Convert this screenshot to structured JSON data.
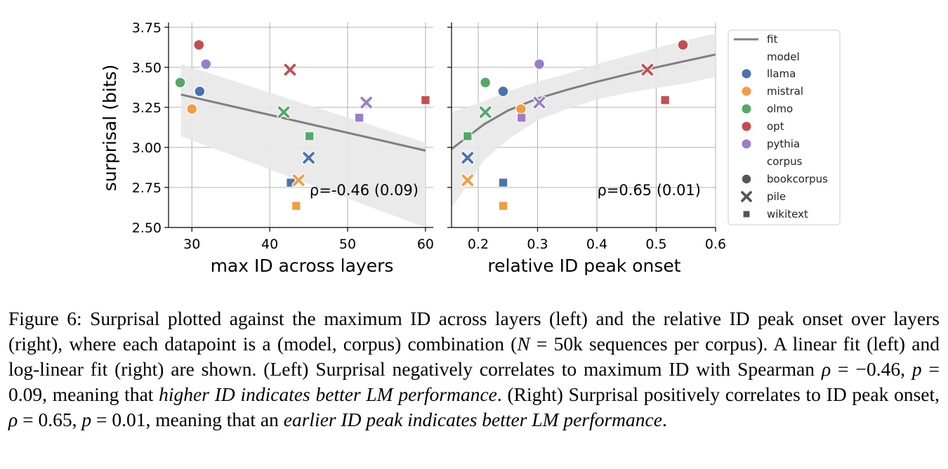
{
  "chart_data": [
    {
      "type": "scatter",
      "xlabel": "max ID across layers",
      "ylabel": "surprisal (bits)",
      "xlim": [
        27,
        61
      ],
      "ylim": [
        2.5,
        3.78
      ],
      "xticks": [
        30,
        40,
        50,
        60
      ],
      "xtick_labels": [
        "30",
        "40",
        "50",
        "60"
      ],
      "yticks": [
        2.5,
        2.75,
        3.0,
        3.25,
        3.5,
        3.75
      ],
      "ytick_labels": [
        "2.50",
        "2.75",
        "3.00",
        "3.25",
        "3.50",
        "3.75"
      ],
      "grid": true,
      "annotation": "ρ=-0.46 (0.09)",
      "fit": {
        "kind": "linear",
        "x": [
          28.6,
          60.0
        ],
        "y": [
          3.33,
          2.98
        ],
        "band_upper": [
          3.52,
          3.03
        ],
        "band_lower": [
          3.07,
          2.5
        ]
      },
      "points": [
        {
          "model": "llama",
          "corpus": "bookcorpus",
          "x": 31.0,
          "y": 3.35
        },
        {
          "model": "llama",
          "corpus": "pile",
          "x": 45.0,
          "y": 2.935
        },
        {
          "model": "llama",
          "corpus": "wikitext",
          "x": 42.7,
          "y": 2.78
        },
        {
          "model": "mistral",
          "corpus": "bookcorpus",
          "x": 30.0,
          "y": 3.24
        },
        {
          "model": "mistral",
          "corpus": "pile",
          "x": 43.7,
          "y": 2.795
        },
        {
          "model": "mistral",
          "corpus": "wikitext",
          "x": 43.4,
          "y": 2.635
        },
        {
          "model": "olmo",
          "corpus": "bookcorpus",
          "x": 28.5,
          "y": 3.405
        },
        {
          "model": "olmo",
          "corpus": "pile",
          "x": 41.8,
          "y": 3.22
        },
        {
          "model": "olmo",
          "corpus": "wikitext",
          "x": 45.1,
          "y": 3.07
        },
        {
          "model": "opt",
          "corpus": "bookcorpus",
          "x": 30.9,
          "y": 3.64
        },
        {
          "model": "opt",
          "corpus": "pile",
          "x": 42.6,
          "y": 3.485
        },
        {
          "model": "opt",
          "corpus": "wikitext",
          "x": 60.0,
          "y": 3.295
        },
        {
          "model": "pythia",
          "corpus": "bookcorpus",
          "x": 31.8,
          "y": 3.52
        },
        {
          "model": "pythia",
          "corpus": "pile",
          "x": 52.4,
          "y": 3.28
        },
        {
          "model": "pythia",
          "corpus": "wikitext",
          "x": 51.5,
          "y": 3.185
        }
      ]
    },
    {
      "type": "scatter",
      "xlabel": "relative ID peak onset",
      "ylabel": "",
      "xlim": [
        0.155,
        0.6
      ],
      "ylim": [
        2.5,
        3.78
      ],
      "xticks": [
        0.2,
        0.3,
        0.4,
        0.5,
        0.6
      ],
      "xtick_labels": [
        "0.2",
        "0.3",
        "0.4",
        "0.5",
        "0.6"
      ],
      "grid": true,
      "annotation": "ρ=0.65 (0.01)",
      "fit": {
        "kind": "log-linear",
        "x": [
          0.155,
          0.18,
          0.21,
          0.25,
          0.3,
          0.35,
          0.4,
          0.45,
          0.5,
          0.55,
          0.6
        ],
        "y": [
          2.99,
          3.06,
          3.145,
          3.23,
          3.305,
          3.36,
          3.41,
          3.455,
          3.5,
          3.54,
          3.58
        ],
        "band_upper": [
          3.22,
          3.25,
          3.29,
          3.35,
          3.41,
          3.46,
          3.52,
          3.57,
          3.62,
          3.67,
          3.71
        ],
        "band_lower": [
          2.62,
          2.76,
          2.92,
          3.05,
          3.17,
          3.24,
          3.3,
          3.34,
          3.37,
          3.4,
          3.44
        ]
      },
      "points": [
        {
          "model": "llama",
          "corpus": "bookcorpus",
          "x": 0.242,
          "y": 3.35
        },
        {
          "model": "llama",
          "corpus": "pile",
          "x": 0.182,
          "y": 2.935
        },
        {
          "model": "llama",
          "corpus": "wikitext",
          "x": 0.242,
          "y": 2.78
        },
        {
          "model": "mistral",
          "corpus": "bookcorpus",
          "x": 0.272,
          "y": 3.24
        },
        {
          "model": "mistral",
          "corpus": "pile",
          "x": 0.182,
          "y": 2.795
        },
        {
          "model": "mistral",
          "corpus": "wikitext",
          "x": 0.242,
          "y": 2.635
        },
        {
          "model": "olmo",
          "corpus": "bookcorpus",
          "x": 0.212,
          "y": 3.405
        },
        {
          "model": "olmo",
          "corpus": "pile",
          "x": 0.212,
          "y": 3.22
        },
        {
          "model": "olmo",
          "corpus": "wikitext",
          "x": 0.182,
          "y": 3.07
        },
        {
          "model": "opt",
          "corpus": "bookcorpus",
          "x": 0.545,
          "y": 3.64
        },
        {
          "model": "opt",
          "corpus": "pile",
          "x": 0.485,
          "y": 3.485
        },
        {
          "model": "opt",
          "corpus": "wikitext",
          "x": 0.515,
          "y": 3.295
        },
        {
          "model": "pythia",
          "corpus": "bookcorpus",
          "x": 0.303,
          "y": 3.52
        },
        {
          "model": "pythia",
          "corpus": "pile",
          "x": 0.303,
          "y": 3.28
        },
        {
          "model": "pythia",
          "corpus": "wikitext",
          "x": 0.273,
          "y": 3.185
        }
      ]
    }
  ],
  "legend": {
    "fit_label": "fit",
    "model_title": "model",
    "models": [
      {
        "name": "llama",
        "color": "#4c72b0"
      },
      {
        "name": "mistral",
        "color": "#f39c43"
      },
      {
        "name": "olmo",
        "color": "#55a868"
      },
      {
        "name": "opt",
        "color": "#c44e52"
      },
      {
        "name": "pythia",
        "color": "#9a7fc7"
      }
    ],
    "corpus_title": "corpus",
    "corpora": [
      {
        "name": "bookcorpus",
        "marker": "circle"
      },
      {
        "name": "pile",
        "marker": "x"
      },
      {
        "name": "wikitext",
        "marker": "square"
      }
    ]
  },
  "colors": {
    "fit_line": "#7f7f7f",
    "band": "#e8e8e8",
    "grid": "#b0b0b0",
    "axis": "#000000"
  },
  "caption": {
    "p1": "Figure 6: Surprisal plotted against the maximum ID across layers (left) and the relative ID peak onset over layers (right), where each datapoint is a (model, corpus) combination (",
    "m1": "N",
    "p2": " = 50k sequences per corpus). A linear fit (left) and log-linear fit (right) are shown. (Left) Surprisal negatively correlates to maximum ID with Spearman ",
    "m2": "ρ",
    "p3": " = −0.46, ",
    "m3": "p",
    "p4": " = 0.09, meaning that ",
    "e1": "higher ID indicates better LM performance",
    "p5": ". (Right) Surprisal positively correlates to ID peak onset, ",
    "m4": "ρ",
    "p6": " = 0.65, ",
    "m5": "p",
    "p7": " = 0.01, meaning that an ",
    "e2": "earlier ID peak indicates better LM performance",
    "p8": "."
  }
}
